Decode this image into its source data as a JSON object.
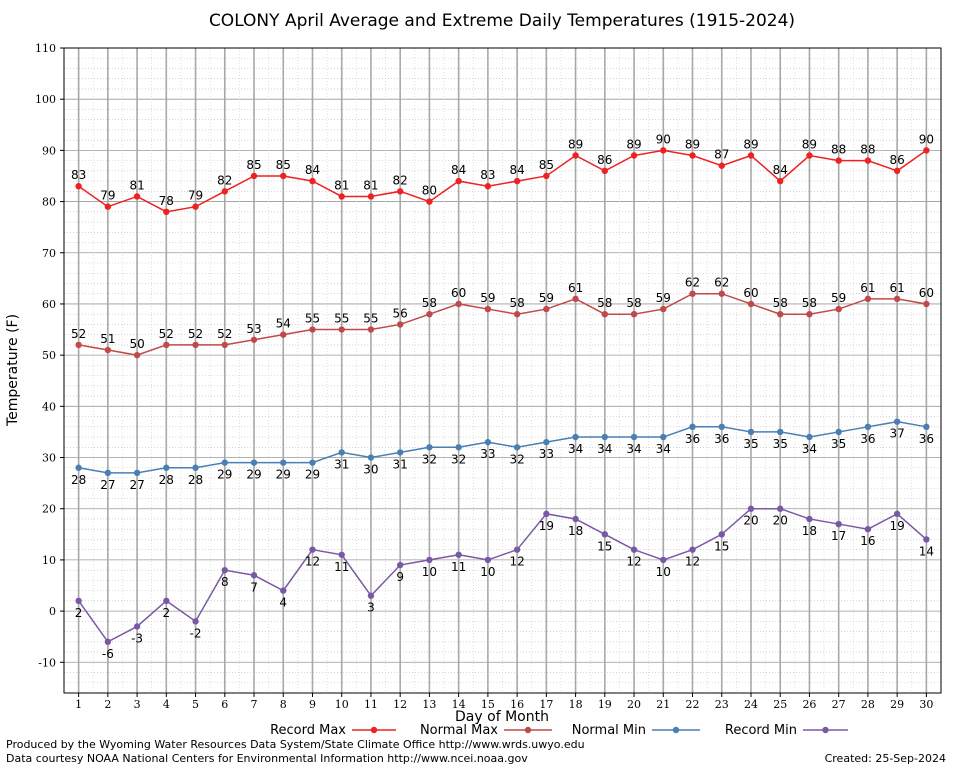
{
  "chart_data": {
    "type": "line",
    "title": "COLONY April Average and Extreme Daily Temperatures (1915-2024)",
    "xlabel": "Day of Month",
    "ylabel": "Temperature (F)",
    "ylim": [
      -16,
      110
    ],
    "yticks": [
      -10,
      0,
      10,
      20,
      30,
      40,
      50,
      60,
      70,
      80,
      90,
      100,
      110
    ],
    "x": [
      1,
      2,
      3,
      4,
      5,
      6,
      7,
      8,
      9,
      10,
      11,
      12,
      13,
      14,
      15,
      16,
      17,
      18,
      19,
      20,
      21,
      22,
      23,
      24,
      25,
      26,
      27,
      28,
      29,
      30
    ],
    "grid": true,
    "legend_position": "bottom",
    "series": [
      {
        "name": "Record Max",
        "color": "#ee2222",
        "label_pos": "above",
        "values": [
          83,
          79,
          81,
          78,
          79,
          82,
          85,
          85,
          84,
          81,
          81,
          82,
          80,
          84,
          83,
          84,
          85,
          89,
          86,
          89,
          90,
          89,
          87,
          89,
          84,
          89,
          88,
          88,
          86,
          90
        ]
      },
      {
        "name": "Normal Max",
        "color": "#c04a4a",
        "label_pos": "above",
        "values": [
          52,
          51,
          50,
          52,
          52,
          52,
          53,
          54,
          55,
          55,
          55,
          56,
          58,
          60,
          59,
          58,
          59,
          61,
          58,
          58,
          59,
          62,
          62,
          60,
          58,
          58,
          59,
          61,
          61,
          60
        ]
      },
      {
        "name": "Normal Min",
        "color": "#4a7fb5",
        "label_pos": "below",
        "values": [
          28,
          27,
          27,
          28,
          28,
          29,
          29,
          29,
          29,
          31,
          30,
          31,
          32,
          32,
          33,
          32,
          33,
          34,
          34,
          34,
          34,
          36,
          36,
          35,
          35,
          34,
          35,
          36,
          37,
          36
        ]
      },
      {
        "name": "Record Min",
        "color": "#7b58a6",
        "label_pos": "below",
        "values": [
          2,
          -6,
          -3,
          2,
          -2,
          8,
          7,
          4,
          12,
          11,
          3,
          9,
          10,
          11,
          10,
          12,
          19,
          18,
          15,
          12,
          10,
          12,
          15,
          20,
          20,
          18,
          17,
          16,
          19,
          14
        ]
      }
    ]
  },
  "footer": {
    "produced_by": "Produced by the Wyoming Water Resources Data System/State Climate Office http://www.wrds.uwyo.edu",
    "courtesy": "Data courtesy NOAA National Centers for Environmental Information http://www.ncei.noaa.gov",
    "created": "Created:  25-Sep-2024"
  }
}
